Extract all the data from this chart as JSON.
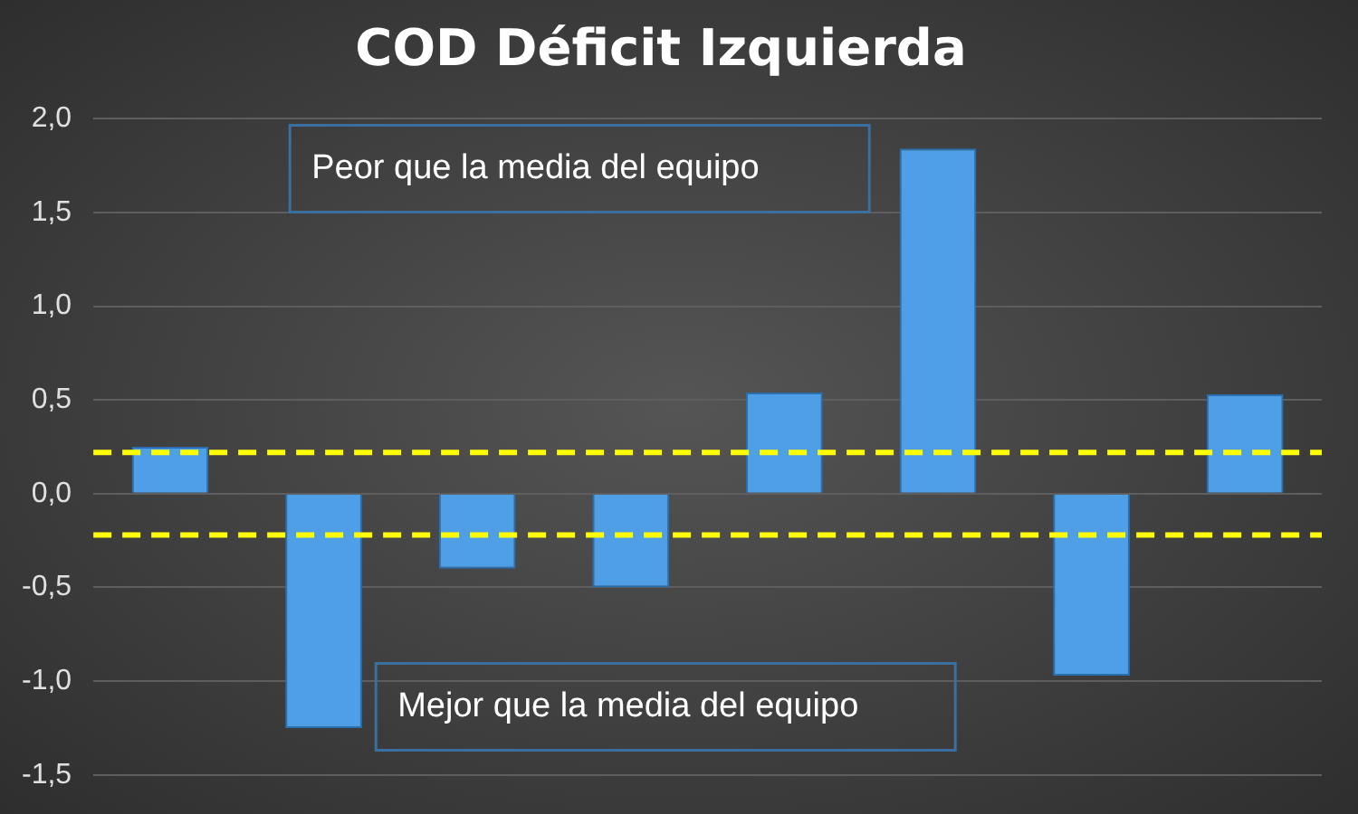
{
  "chart_data": {
    "type": "bar",
    "title": "COD Déficit Izquierda",
    "categories": [
      null,
      null,
      null,
      null,
      null,
      null,
      null,
      null
    ],
    "values": [
      0.25,
      -1.25,
      -0.4,
      -0.5,
      0.54,
      1.84,
      -0.97,
      0.53
    ],
    "color": "#4f9fe6",
    "ylim": [
      -1.5,
      2
    ],
    "yticks": [
      {
        "value": -1.5,
        "label": "-1,5"
      },
      {
        "value": -1,
        "label": "-1,0"
      },
      {
        "value": -0.5,
        "label": "-0,5"
      },
      {
        "value": 0,
        "label": "0,0"
      },
      {
        "value": 0.5,
        "label": "0,5"
      },
      {
        "value": 1,
        "label": "1,0"
      },
      {
        "value": 1.5,
        "label": "1,5"
      },
      {
        "value": 2,
        "label": "2,0"
      }
    ],
    "grid": "y",
    "tick_labels": "y",
    "ref_lines": [
      {
        "axis": "y",
        "value": 0.22,
        "color": "#ffff00",
        "line_style": "dashed"
      },
      {
        "axis": "y",
        "value": -0.22,
        "color": "#ffff00",
        "line_style": "dashed"
      }
    ],
    "annotations": [
      "Peor que la media del equipo",
      "Mejor que la media del equipo"
    ]
  }
}
